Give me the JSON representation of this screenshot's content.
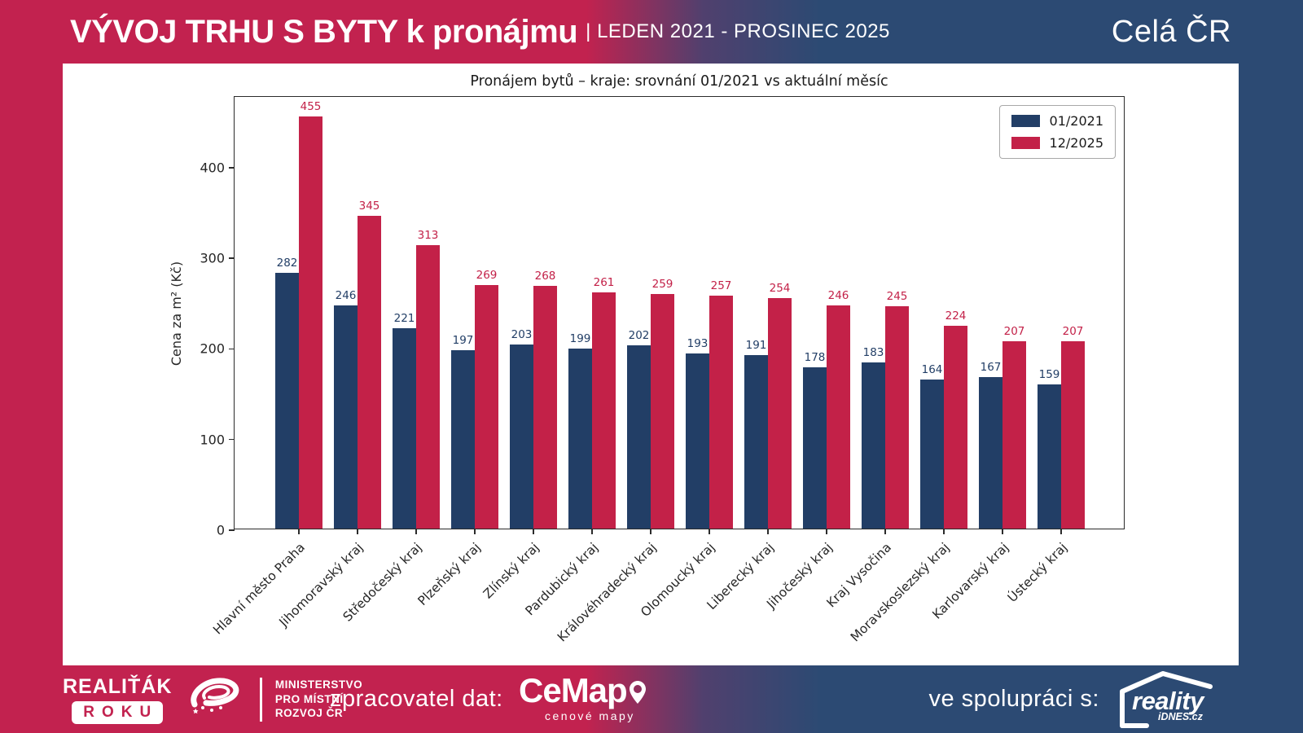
{
  "header": {
    "title": "VÝVOJ TRHU S BYTY k pronájmu",
    "subtitle": "| LEDEN 2021 - PROSINEC 2025",
    "region": "Celá ČR"
  },
  "chart_data": {
    "type": "bar",
    "title": "Pronájem bytů – kraje: srovnání 01/2021 vs aktuální měsíc",
    "xlabel": "",
    "ylabel": "Cena za m² (Kč)",
    "ylim": [
      0,
      478
    ],
    "yticks": [
      0,
      100,
      200,
      300,
      400
    ],
    "grid": false,
    "legend_position": "upper right",
    "categories": [
      "Hlavní město Praha",
      "Jihomoravský kraj",
      "Středočeský kraj",
      "Plzeňský kraj",
      "Zlínský kraj",
      "Pardubický kraj",
      "Královéhradecký kraj",
      "Olomoucký kraj",
      "Liberecký kraj",
      "Jihočeský kraj",
      "Kraj Vysočina",
      "Moravskoslezský kraj",
      "Karlovarský kraj",
      "Ústecký kraj"
    ],
    "series": [
      {
        "name": "01/2021",
        "color": "#223e66",
        "values": [
          282,
          246,
          221,
          197,
          203,
          199,
          202,
          193,
          191,
          178,
          183,
          164,
          167,
          159
        ]
      },
      {
        "name": "12/2025",
        "color": "#c32148",
        "values": [
          455,
          345,
          313,
          269,
          268,
          261,
          259,
          257,
          254,
          246,
          245,
          224,
          207,
          207
        ]
      }
    ]
  },
  "footer": {
    "realitak_name": "REALIŤÁK",
    "realitak_roku": "ROKU",
    "ministry_lines": [
      "MINISTERSTVO",
      "PRO MÍSTNÍ",
      "ROZVOJ ČR"
    ],
    "zpracovatel_label": "zpracovatel dat:",
    "cemap_name": "CeMap",
    "cemap_tagline": "cenové mapy",
    "spoluprace_label": "ve spolupráci s:",
    "reality_name": "reality",
    "reality_sub": "iDNES.cz"
  },
  "colors": {
    "brand_crimson": "#c2224f",
    "brand_navy": "#2c4a73",
    "bar_2021": "#223e66",
    "bar_2025": "#c32148",
    "card_background": "#ffffff"
  }
}
